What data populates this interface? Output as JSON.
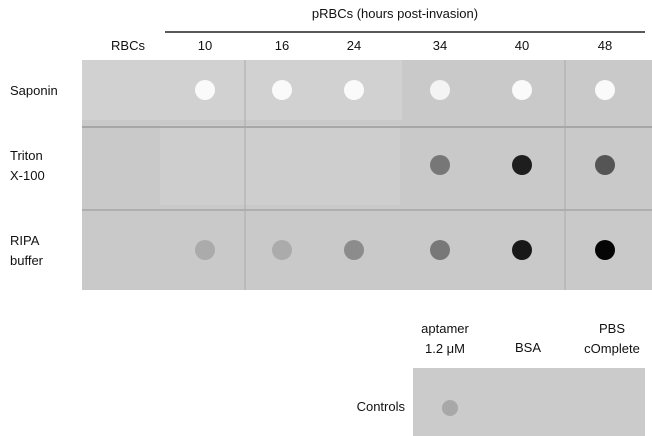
{
  "header": {
    "title": "pRBCs (hours post-invasion)"
  },
  "columns": [
    "RBCs",
    "10",
    "16",
    "24",
    "34",
    "40",
    "48"
  ],
  "rows": [
    [
      "Saponin"
    ],
    [
      "Triton",
      "X-100"
    ],
    [
      "RIPA",
      "buffer"
    ]
  ],
  "controls": {
    "label": "Controls",
    "columns": [
      [
        "aptamer",
        "1.2 μM"
      ],
      [
        "BSA"
      ],
      [
        "PBS",
        "cOmplete"
      ]
    ]
  }
}
